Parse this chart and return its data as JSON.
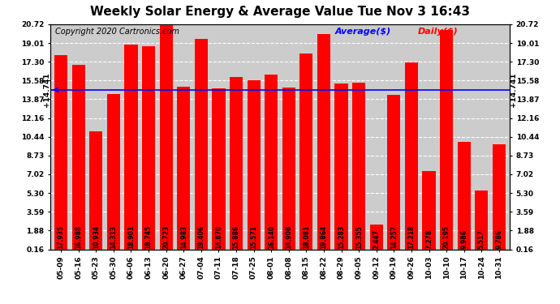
{
  "title": "Weekly Solar Energy & Average Value Tue Nov 3 16:43",
  "copyright": "Copyright 2020 Cartronics.com",
  "legend_avg": "Average($)",
  "legend_daily": "Daily($)",
  "average_value": 14.741,
  "categories": [
    "05-09",
    "05-16",
    "05-23",
    "05-30",
    "06-06",
    "06-13",
    "06-20",
    "06-27",
    "07-04",
    "07-11",
    "07-18",
    "07-25",
    "08-01",
    "08-08",
    "08-15",
    "08-22",
    "08-29",
    "09-05",
    "09-12",
    "09-19",
    "09-26",
    "10-03",
    "10-10",
    "10-17",
    "10-24",
    "10-31"
  ],
  "values": [
    17.935,
    16.988,
    10.934,
    14.313,
    18.901,
    18.745,
    20.723,
    14.983,
    19.406,
    14.87,
    15.886,
    15.571,
    16.14,
    14.908,
    18.081,
    19.864,
    15.283,
    15.355,
    2.447,
    14.257,
    17.218,
    7.278,
    20.195,
    9.986,
    5.517,
    9.786
  ],
  "yticks": [
    0.16,
    1.88,
    3.59,
    5.3,
    7.02,
    8.73,
    10.44,
    12.16,
    13.87,
    15.58,
    17.3,
    19.01,
    20.72
  ],
  "bar_color": "#ff0000",
  "avg_line_color": "#0000ff",
  "title_fontsize": 11,
  "copyright_fontsize": 7,
  "tick_fontsize": 6.5,
  "value_fontsize": 5.5,
  "legend_fontsize": 8,
  "background_color": "#ffffff",
  "grid_color": "#ffffff",
  "plot_bg_color": "#cccccc"
}
